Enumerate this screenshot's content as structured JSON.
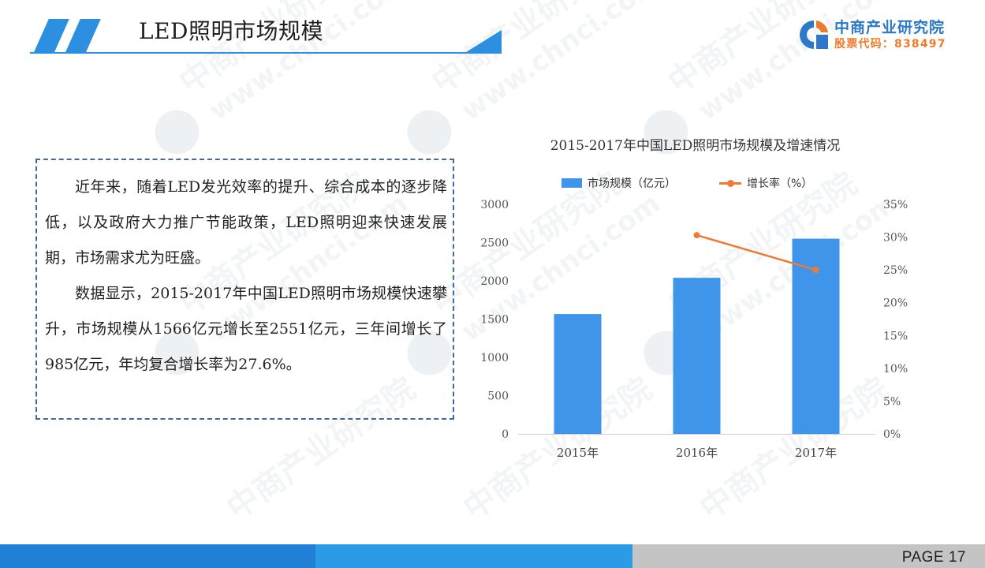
{
  "header": {
    "title": "LED照明市场规模",
    "logo_name": "中商产业研究院",
    "logo_code": "股票代码：838497"
  },
  "watermark": {
    "text": "中商产业研究院",
    "url": "www.chnci.com"
  },
  "textbox": {
    "paragraph_1": "近年来，随着LED发光效率的提升、综合成本的逐步降低，以及政府大力推广节能政策，LED照明迎来快速发展期，市场需求尤为旺盛。",
    "paragraph_2": "数据显示，2015-2017年中国LED照明市场规模快速攀升，市场规模从1566亿元增长至2551亿元，三年间增长了985亿元，年均复合增长率为27.6%。"
  },
  "chart_data": {
    "type": "bar",
    "title": "2015-2017年中国LED照明市场规模及增速情况",
    "categories": [
      "2015年",
      "2016年",
      "2017年"
    ],
    "series": [
      {
        "name": "市场规模（亿元）",
        "type": "bar",
        "axis": "left",
        "color": "#3e95ea",
        "values": [
          1566,
          2040,
          2551
        ]
      },
      {
        "name": "增长率（%）",
        "type": "line",
        "axis": "right",
        "color": "#ef7a33",
        "values": [
          null,
          30.3,
          25.0
        ]
      }
    ],
    "y_left": {
      "min": 0,
      "max": 3000,
      "ticks": [
        "0",
        "500",
        "1000",
        "1500",
        "2000",
        "2500",
        "3000"
      ]
    },
    "y_right": {
      "min": 0,
      "max": 35,
      "ticks": [
        "0%",
        "5%",
        "10%",
        "15%",
        "20%",
        "25%",
        "30%",
        "35%"
      ]
    },
    "grid": false,
    "legend_position": "top"
  },
  "footer": {
    "page_label": "PAGE  17"
  }
}
